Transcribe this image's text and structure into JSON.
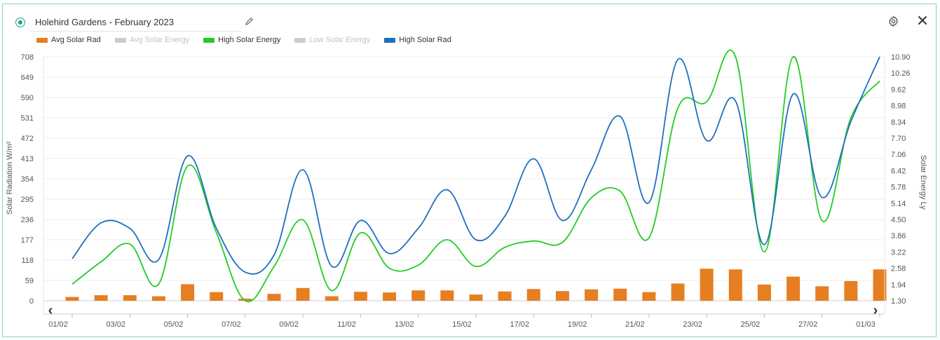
{
  "header": {
    "title": "Holehird Gardens - February 2023"
  },
  "icons": {
    "edit": "pencil-icon",
    "settings": "gear-icon",
    "close": "close-icon"
  },
  "colors": {
    "avg_solar_rad": "#e67e22",
    "avg_solar_energy": "#cccccc",
    "high_solar_energy": "#22cc22",
    "low_solar_energy": "#cccccc",
    "high_solar_rad": "#1f6fbf",
    "frame_border": "#7fd3cc"
  },
  "legend": [
    {
      "label": "Avg Solar Rad",
      "color": "#e67e22",
      "visible": true
    },
    {
      "label": "Avg Solar Energy",
      "color": "#cccccc",
      "visible": false
    },
    {
      "label": "High Solar Energy",
      "color": "#22cc22",
      "visible": true
    },
    {
      "label": "Low Solar Energy",
      "color": "#cccccc",
      "visible": false
    },
    {
      "label": "High Solar Rad",
      "color": "#1f6fbf",
      "visible": true
    }
  ],
  "navigation": {
    "prev": "‹",
    "next": "›"
  },
  "chart_data": {
    "type": "bar",
    "ylabel": "Solar Radiation W/m²",
    "y2label": "Solar Energy Ly",
    "ylim": [
      0,
      708
    ],
    "y2lim": [
      1.3,
      10.9
    ],
    "yticks": [
      "0",
      "59",
      "118",
      "177",
      "236",
      "295",
      "354",
      "413",
      "472",
      "531",
      "590",
      "649",
      "708"
    ],
    "y2ticks": [
      "1.30",
      "1.94",
      "2.58",
      "3.22",
      "3.86",
      "4.50",
      "5.14",
      "5.78",
      "6.42",
      "7.06",
      "7.70",
      "8.34",
      "8.98",
      "9.62",
      "10.26",
      "10.90"
    ],
    "xticks": [
      "01/02",
      "03/02",
      "05/02",
      "07/02",
      "09/02",
      "11/02",
      "13/02",
      "15/02",
      "17/02",
      "19/02",
      "21/02",
      "23/02",
      "25/02",
      "27/02",
      "01/03"
    ],
    "grid": true,
    "legend_position": "top-left",
    "categories": [
      "01/02",
      "02/02",
      "03/02",
      "04/02",
      "05/02",
      "06/02",
      "07/02",
      "08/02",
      "09/02",
      "10/02",
      "11/02",
      "12/02",
      "13/02",
      "14/02",
      "15/02",
      "16/02",
      "17/02",
      "18/02",
      "19/02",
      "20/02",
      "21/02",
      "22/02",
      "23/02",
      "24/02",
      "25/02",
      "26/02",
      "27/02",
      "28/02",
      "01/03"
    ],
    "series": [
      {
        "name": "Avg Solar Rad",
        "kind": "bar",
        "axis": "left",
        "values": [
          11,
          16,
          16,
          13,
          48,
          25,
          6,
          20,
          37,
          13,
          26,
          24,
          30,
          30,
          18,
          27,
          34,
          28,
          33,
          35,
          25,
          50,
          93,
          91,
          47,
          70,
          42,
          57,
          91
        ]
      },
      {
        "name": "High Solar Energy",
        "kind": "line",
        "axis": "right",
        "values": [
          1.95,
          2.83,
          3.53,
          1.96,
          6.6,
          3.98,
          1.3,
          2.65,
          4.48,
          1.7,
          3.97,
          2.58,
          2.7,
          3.7,
          2.65,
          3.4,
          3.65,
          3.6,
          5.35,
          5.61,
          3.78,
          8.88,
          9.13,
          10.9,
          3.22,
          10.9,
          4.45,
          8.5,
          9.95
        ]
      },
      {
        "name": "High Solar Rad",
        "kind": "line",
        "axis": "left",
        "values": [
          122,
          226,
          210,
          120,
          420,
          210,
          83,
          133,
          380,
          100,
          233,
          137,
          210,
          322,
          177,
          245,
          412,
          233,
          380,
          535,
          285,
          700,
          465,
          580,
          163,
          600,
          300,
          520,
          708
        ]
      }
    ]
  }
}
